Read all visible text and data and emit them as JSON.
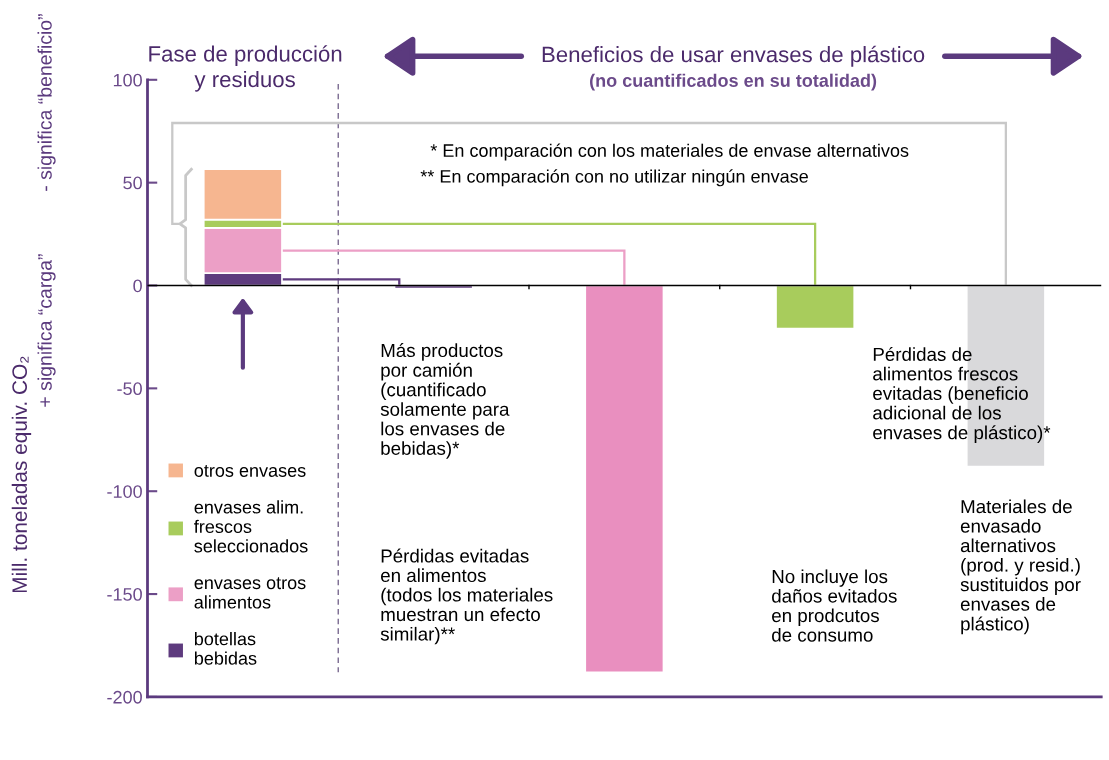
{
  "chart_data": {
    "type": "bar",
    "stacked": true,
    "title": "Beneficios de usar envases de plástico",
    "subtitle": "(no cuantificados en su totalidad)",
    "ylabel": "Mill. toneladas equiv. CO₂",
    "categories": [
      null,
      null,
      null,
      null,
      null
    ],
    "series": [
      {
        "name": "botellas\nbebidas",
        "color": "#5e3b7e",
        "values": [
          6,
          null,
          null,
          null,
          null
        ]
      },
      {
        "name": "envases otros\nalimentos",
        "color": "#ec9fc6",
        "values": [
          22,
          null,
          null,
          null,
          null
        ]
      },
      {
        "name": "envases alim.\nfrescos\nseleccionados",
        "color": "#a8cc5c",
        "values": [
          4,
          null,
          null,
          null,
          null
        ]
      },
      {
        "name": "otros envases",
        "color": "#f6b690",
        "values": [
          24.5,
          null,
          null,
          null,
          null
        ]
      },
      {
        "colors": [
          null,
          "#5e3b7e",
          "#e98fbf",
          "#a8cc5c",
          "#d9d9db"
        ],
        "values": [
          null,
          -1.5,
          -188,
          -21,
          -88
        ]
      }
    ],
    "ylim": [
      -200,
      100
    ],
    "yticks": [
      100,
      50,
      0,
      -50,
      -100,
      -150,
      -200
    ],
    "ref_lines": [
      {
        "axis": "y",
        "value": 0,
        "color": "#000000"
      }
    ],
    "legend": "bottom left",
    "grid": false,
    "annotations": [
      "Fase de producción\ny residuos",
      "+ significa “carga”",
      "- significa “beneficio”",
      "* En comparación con los materiales de envase alternativos",
      "** En comparación con no utilizar ningún envase",
      "Más productos\npor camión\n(cuantificado\nsolamente para\nlos envases de\nbebidas)*",
      "Pérdidas evitadas\nen alimentos\n(todos los materiales\nmuestran un efecto\nsimilar)**",
      "No incluye los\ndaños evitados\nen prodcutos\nde consumo",
      "Pérdidas de\nalimentos frescos\nevitadas (beneficio\nadicional de los\nenvases de plástico)*",
      "Materiales de\nenvasado\nalternativos\n(prod. y resid.)\nsustituidos por\nenvases de\nplástico)"
    ]
  }
}
